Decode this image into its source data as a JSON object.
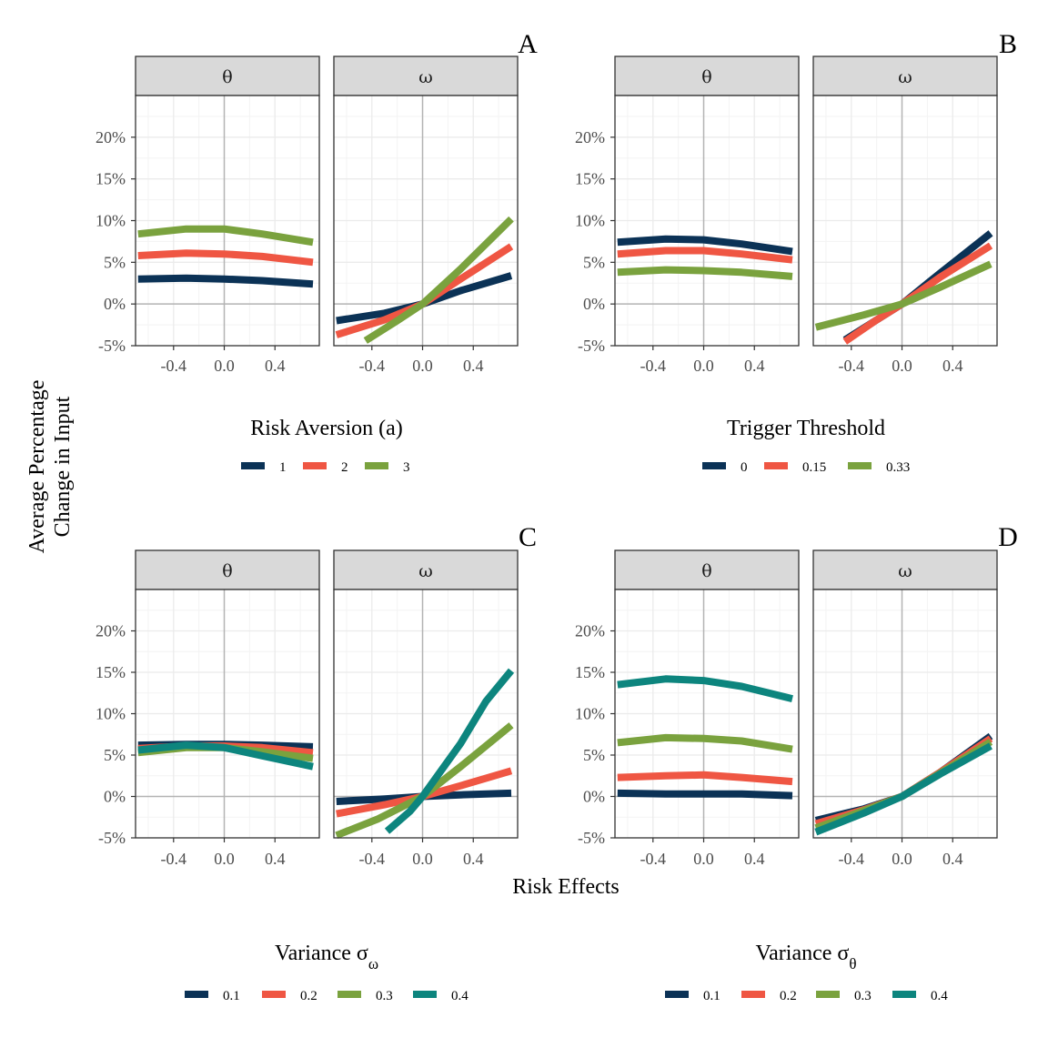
{
  "colors": {
    "navy": "#0b3256",
    "red": "#ef5643",
    "green": "#7aa23e",
    "teal": "#0d857e",
    "strip_bg": "#d9d9d9",
    "grid_major": "#ebebeb",
    "zero_line": "#b3b3b3"
  },
  "shared": {
    "y_axis_label_line1": "Average Percentage",
    "y_axis_label_line2": "Change in Input",
    "x_axis_label": "Risk Effects"
  },
  "chart_data": [
    {
      "type": "line",
      "panel_letter": "A",
      "facets": [
        "θ",
        "ω"
      ],
      "legend_title": "Risk Aversion (a)",
      "x_ticks": [
        "-0.4",
        "0.0",
        "0.4"
      ],
      "y_ticks": [
        "-5%",
        "0%",
        "5%",
        "10%",
        "15%",
        "20%"
      ],
      "xlim": [
        -0.7,
        0.75
      ],
      "ylim": [
        -5,
        25
      ],
      "series": [
        {
          "name": "1",
          "color": "navy",
          "theta": [
            [
              -0.68,
              3.0
            ],
            [
              -0.3,
              3.1
            ],
            [
              0.0,
              3.0
            ],
            [
              0.3,
              2.8
            ],
            [
              0.7,
              2.4
            ]
          ],
          "omega": [
            [
              -0.68,
              -2.0
            ],
            [
              -0.3,
              -1.1
            ],
            [
              0.0,
              0.0
            ],
            [
              0.3,
              1.6
            ],
            [
              0.7,
              3.4
            ]
          ]
        },
        {
          "name": "2",
          "color": "red",
          "theta": [
            [
              -0.68,
              5.8
            ],
            [
              -0.3,
              6.1
            ],
            [
              0.0,
              6.0
            ],
            [
              0.3,
              5.7
            ],
            [
              0.7,
              5.0
            ]
          ],
          "omega": [
            [
              -0.68,
              -3.7
            ],
            [
              -0.3,
              -1.9
            ],
            [
              0.0,
              0.0
            ],
            [
              0.3,
              3.0
            ],
            [
              0.7,
              6.9
            ]
          ]
        },
        {
          "name": "3",
          "color": "green",
          "theta": [
            [
              -0.68,
              8.4
            ],
            [
              -0.3,
              9.0
            ],
            [
              0.0,
              9.0
            ],
            [
              0.3,
              8.4
            ],
            [
              0.7,
              7.4
            ]
          ],
          "omega": [
            [
              -0.45,
              -4.4
            ],
            [
              -0.2,
              -2.0
            ],
            [
              0.0,
              0.0
            ],
            [
              0.3,
              4.2
            ],
            [
              0.7,
              10.2
            ]
          ]
        }
      ]
    },
    {
      "type": "line",
      "panel_letter": "B",
      "facets": [
        "θ",
        "ω"
      ],
      "legend_title": "Trigger Threshold",
      "x_ticks": [
        "-0.4",
        "0.0",
        "0.4"
      ],
      "y_ticks": [
        "-5%",
        "0%",
        "5%",
        "10%",
        "15%",
        "20%"
      ],
      "xlim": [
        -0.7,
        0.75
      ],
      "ylim": [
        -5,
        25
      ],
      "series": [
        {
          "name": "0",
          "color": "navy",
          "theta": [
            [
              -0.68,
              7.4
            ],
            [
              -0.3,
              7.8
            ],
            [
              0.0,
              7.7
            ],
            [
              0.3,
              7.2
            ],
            [
              0.7,
              6.3
            ]
          ],
          "omega": [
            [
              -0.45,
              -4.3
            ],
            [
              -0.2,
              -1.9
            ],
            [
              0.0,
              0.0
            ],
            [
              0.3,
              3.7
            ],
            [
              0.7,
              8.5
            ]
          ]
        },
        {
          "name": "0.15",
          "color": "red",
          "theta": [
            [
              -0.68,
              6.0
            ],
            [
              -0.3,
              6.4
            ],
            [
              0.0,
              6.4
            ],
            [
              0.3,
              6.0
            ],
            [
              0.7,
              5.3
            ]
          ],
          "omega": [
            [
              -0.45,
              -4.5
            ],
            [
              -0.2,
              -1.9
            ],
            [
              0.0,
              0.0
            ],
            [
              0.3,
              3.2
            ],
            [
              0.7,
              7.0
            ]
          ]
        },
        {
          "name": "0.33",
          "color": "green",
          "theta": [
            [
              -0.68,
              3.8
            ],
            [
              -0.3,
              4.1
            ],
            [
              0.0,
              4.0
            ],
            [
              0.3,
              3.8
            ],
            [
              0.7,
              3.3
            ]
          ],
          "omega": [
            [
              -0.68,
              -2.8
            ],
            [
              -0.3,
              -1.3
            ],
            [
              0.0,
              0.0
            ],
            [
              0.3,
              2.0
            ],
            [
              0.7,
              4.8
            ]
          ]
        }
      ]
    },
    {
      "type": "line",
      "panel_letter": "C",
      "facets": [
        "θ",
        "ω"
      ],
      "legend_title": "Variance σ",
      "legend_title_sub": "ω",
      "x_ticks": [
        "-0.4",
        "0.0",
        "0.4"
      ],
      "y_ticks": [
        "-5%",
        "0%",
        "5%",
        "10%",
        "15%",
        "20%"
      ],
      "xlim": [
        -0.7,
        0.75
      ],
      "ylim": [
        -5,
        25
      ],
      "series": [
        {
          "name": "0.1",
          "color": "navy",
          "theta": [
            [
              -0.68,
              6.2
            ],
            [
              -0.3,
              6.3
            ],
            [
              0.0,
              6.3
            ],
            [
              0.3,
              6.2
            ],
            [
              0.7,
              6.0
            ]
          ],
          "omega": [
            [
              -0.68,
              -0.6
            ],
            [
              -0.3,
              -0.3
            ],
            [
              0.0,
              0.0
            ],
            [
              0.3,
              0.2
            ],
            [
              0.7,
              0.4
            ]
          ]
        },
        {
          "name": "0.2",
          "color": "red",
          "theta": [
            [
              -0.68,
              5.8
            ],
            [
              -0.3,
              6.1
            ],
            [
              0.0,
              6.1
            ],
            [
              0.3,
              5.9
            ],
            [
              0.7,
              5.3
            ]
          ],
          "omega": [
            [
              -0.68,
              -2.1
            ],
            [
              -0.3,
              -1.0
            ],
            [
              0.0,
              0.0
            ],
            [
              0.3,
              1.3
            ],
            [
              0.7,
              3.1
            ]
          ]
        },
        {
          "name": "0.3",
          "color": "green",
          "theta": [
            [
              -0.68,
              5.3
            ],
            [
              -0.3,
              5.9
            ],
            [
              0.0,
              5.9
            ],
            [
              0.3,
              5.4
            ],
            [
              0.7,
              4.6
            ]
          ],
          "omega": [
            [
              -0.68,
              -4.7
            ],
            [
              -0.35,
              -2.7
            ],
            [
              0.0,
              0.0
            ],
            [
              0.3,
              3.6
            ],
            [
              0.7,
              8.6
            ]
          ]
        },
        {
          "name": "0.4",
          "color": "teal",
          "theta": [
            [
              -0.68,
              5.6
            ],
            [
              -0.3,
              6.2
            ],
            [
              0.0,
              5.9
            ],
            [
              0.3,
              4.9
            ],
            [
              0.7,
              3.6
            ]
          ],
          "omega": [
            [
              -0.28,
              -4.2
            ],
            [
              -0.1,
              -1.8
            ],
            [
              0.0,
              0.0
            ],
            [
              0.3,
              6.4
            ],
            [
              0.5,
              11.5
            ],
            [
              0.7,
              15.2
            ]
          ]
        }
      ]
    },
    {
      "type": "line",
      "panel_letter": "D",
      "facets": [
        "θ",
        "ω"
      ],
      "legend_title": "Variance σ",
      "legend_title_sub": "θ",
      "x_ticks": [
        "-0.4",
        "0.0",
        "0.4"
      ],
      "y_ticks": [
        "-5%",
        "0%",
        "5%",
        "10%",
        "15%",
        "20%"
      ],
      "xlim": [
        -0.7,
        0.75
      ],
      "ylim": [
        -5,
        25
      ],
      "series": [
        {
          "name": "0.1",
          "color": "navy",
          "theta": [
            [
              -0.68,
              0.4
            ],
            [
              -0.3,
              0.3
            ],
            [
              0.0,
              0.3
            ],
            [
              0.3,
              0.3
            ],
            [
              0.7,
              0.1
            ]
          ],
          "omega": [
            [
              -0.68,
              -2.9
            ],
            [
              -0.3,
              -1.5
            ],
            [
              0.0,
              0.0
            ],
            [
              0.3,
              2.9
            ],
            [
              0.7,
              7.3
            ]
          ]
        },
        {
          "name": "0.2",
          "color": "red",
          "theta": [
            [
              -0.68,
              2.3
            ],
            [
              -0.3,
              2.5
            ],
            [
              0.0,
              2.6
            ],
            [
              0.3,
              2.3
            ],
            [
              0.7,
              1.8
            ]
          ],
          "omega": [
            [
              -0.68,
              -3.3
            ],
            [
              -0.3,
              -1.6
            ],
            [
              0.0,
              0.0
            ],
            [
              0.3,
              2.9
            ],
            [
              0.7,
              7.0
            ]
          ]
        },
        {
          "name": "0.3",
          "color": "green",
          "theta": [
            [
              -0.68,
              6.5
            ],
            [
              -0.3,
              7.1
            ],
            [
              0.0,
              7.0
            ],
            [
              0.3,
              6.7
            ],
            [
              0.7,
              5.7
            ]
          ],
          "omega": [
            [
              -0.68,
              -3.8
            ],
            [
              -0.3,
              -1.7
            ],
            [
              0.0,
              0.0
            ],
            [
              0.3,
              2.8
            ],
            [
              0.7,
              6.6
            ]
          ]
        },
        {
          "name": "0.4",
          "color": "teal",
          "theta": [
            [
              -0.68,
              13.5
            ],
            [
              -0.3,
              14.2
            ],
            [
              0.0,
              14.0
            ],
            [
              0.3,
              13.3
            ],
            [
              0.7,
              11.8
            ]
          ],
          "omega": [
            [
              -0.68,
              -4.3
            ],
            [
              -0.3,
              -2.0
            ],
            [
              0.0,
              0.0
            ],
            [
              0.3,
              2.7
            ],
            [
              0.7,
              6.1
            ]
          ]
        }
      ]
    }
  ]
}
